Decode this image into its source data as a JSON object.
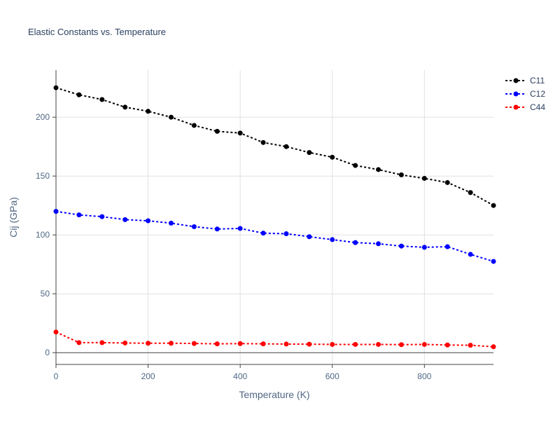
{
  "chart_data": {
    "type": "line",
    "title": "Elastic Constants vs. Temperature",
    "xlabel": "Temperature (K)",
    "ylabel": "Cij (GPa)",
    "xlim": [
      0,
      950
    ],
    "ylim": [
      -10,
      240
    ],
    "xticks": [
      0,
      200,
      400,
      600,
      800
    ],
    "yticks": [
      0,
      50,
      100,
      150,
      200
    ],
    "grid": true,
    "legend_position": "top-right",
    "x": [
      0,
      50,
      100,
      150,
      200,
      250,
      300,
      350,
      400,
      450,
      500,
      550,
      600,
      650,
      700,
      750,
      800,
      850,
      900,
      950
    ],
    "series": [
      {
        "name": "C11",
        "color": "#000000",
        "values": [
          225,
          219,
          215,
          208.5,
          205,
          200,
          193,
          188,
          186.5,
          178.5,
          175,
          170,
          166,
          159,
          155.5,
          151,
          148,
          144.5,
          136,
          125
        ]
      },
      {
        "name": "C12",
        "color": "#0000ff",
        "values": [
          120,
          117,
          115.5,
          113,
          112,
          110,
          107,
          105,
          105.5,
          101.5,
          101,
          98.5,
          96,
          93.5,
          92.5,
          90.5,
          89.5,
          90,
          83.5,
          77.5
        ]
      },
      {
        "name": "C44",
        "color": "#ff0000",
        "values": [
          17.5,
          8.5,
          8.5,
          8.2,
          8,
          8,
          7.8,
          7.5,
          7.7,
          7.5,
          7.3,
          7.2,
          7,
          7,
          7,
          6.8,
          7,
          6.5,
          6.3,
          5
        ]
      }
    ]
  }
}
